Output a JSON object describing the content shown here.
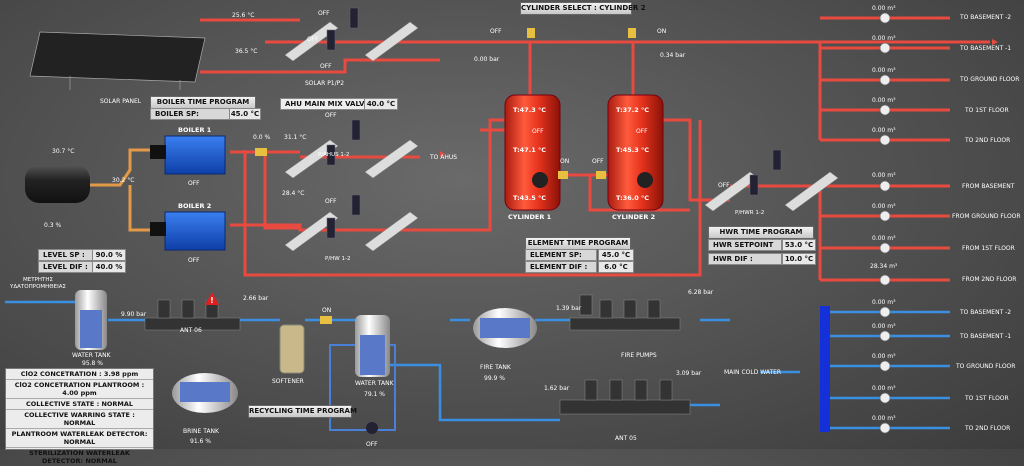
{
  "colors": {
    "hot": "#e8473d",
    "cold": "#3a8fe0",
    "warm": "#e08a3a",
    "recycle": "#2a6fc4"
  },
  "solar": {
    "temp1": "25.6 °C",
    "temp2": "36.5 °C",
    "label": "SOLAR PANEL",
    "pumps_label": "SOLAR P1/P2",
    "pump_state": "OFF",
    "pump_state2": "OFF",
    "pump_state3": "OFF"
  },
  "boiler": {
    "time_program": "BOILER TIME PROGRAM",
    "sp_label": "BOILER SP:",
    "sp_value": "45.0 °C",
    "boiler1": "BOILER 1",
    "boiler1_state": "OFF",
    "boiler2": "BOILER 2",
    "boiler2_state": "OFF",
    "valve_pct": "0.0 %",
    "temp_return": "30.2 °C",
    "temp_out": "28.4 °C"
  },
  "ahu": {
    "mix_label": "AHU MAIN MIX VALVE :",
    "mix_value": "40.0 °C",
    "temp": "31.1 °C",
    "pumps": "P/AHUS 1-2",
    "to_ahus": "TO AHUS",
    "state": "OFF"
  },
  "hw": {
    "pumps": "P/HW 1-2",
    "state": "OFF"
  },
  "tank": {
    "temp": "30.7 °C",
    "pct": "0.3 %",
    "level_sp_label": "LEVEL SP :",
    "level_sp": "90.0 %",
    "level_dif_label": "LEVEL DIF :",
    "level_dif": "40.0 %"
  },
  "cylinder": {
    "select": "CYLINDER SELECT : CYLINDER 2",
    "off_label": "OFF",
    "on_label": "ON",
    "pressure1": "0.00 bar",
    "pressure2": "0.34 bar",
    "cyl1_name": "CYLINDER 1",
    "cyl1_temps": [
      "T:47.3 °C",
      "T:47.1 °C",
      "T:43.5 °C"
    ],
    "cyl2_name": "CYLINDER 2",
    "cyl2_temps": [
      "T:37.2 °C",
      "T:45.3 °C",
      "T:36.0 °C"
    ],
    "state_off": "OFF",
    "valve_on": "ON",
    "valve_off": "OFF"
  },
  "element": {
    "title": "ELEMENT TIME PROGRAM",
    "sp_label": "ELEMENT SP:",
    "sp_value": "45.0 °C",
    "dif_label": "ELEMENT DIF :",
    "dif_value": "6.0 °C"
  },
  "hwr": {
    "title": "HWR TIME PROGRAM",
    "sp_label": "HWR SETPOINT",
    "sp_value": "53.0 °C",
    "dif_label": "HWR DIF :",
    "dif_value": "10.0 °C",
    "pumps": "P/HWR 1-2",
    "state": "OFF"
  },
  "hot_outputs": [
    {
      "flow": "0.00 m³",
      "label": "TO BASEMENT -2"
    },
    {
      "flow": "0.00 m³",
      "label": "TO BASEMENT -1"
    },
    {
      "flow": "0.00 m³",
      "label": "TO GROUND FLOOR"
    },
    {
      "flow": "0.00 m³",
      "label": "TO 1ST FLOOR"
    },
    {
      "flow": "0.00 m³",
      "label": "TO 2ND FLOOR"
    }
  ],
  "returns": [
    {
      "flow": "0.00 m³",
      "label": "FROM BASEMENT"
    },
    {
      "flow": "0.00 m³",
      "label": "FROM GROUND FLOOR"
    },
    {
      "flow": "0.00 m³",
      "label": "FROM 1ST FLOOR"
    },
    {
      "flow": "28.34 m³",
      "label": "FROM 2ND FLOOR"
    }
  ],
  "cold_outputs": [
    {
      "flow": "0.00 m³",
      "label": "TO BASEMENT -2"
    },
    {
      "flow": "0.00 m³",
      "label": "TO BASEMENT -1"
    },
    {
      "flow": "0.00 m³",
      "label": "TO GROUND FLOOR"
    },
    {
      "flow": "0.00 m³",
      "label": "TO 1ST FLOOR"
    },
    {
      "flow": "0.00 m³",
      "label": "TO 2ND FLOOR"
    }
  ],
  "water": {
    "meter_label": "ΜΕΤΡΗΤΗΣ ΥΔΑΤΟΠΡΟΜΗΘΕΙΑΣ",
    "tank1": "WATER TANK",
    "tank1_pct": "95.8 %",
    "pressure_ant": "9.90 bar",
    "ant06": "ANT 06",
    "pressure_soft": "2.66 bar",
    "softener": "SOFTENER",
    "on": "ON",
    "tank2": "WATER TANK",
    "tank2_pct": "79.1 %",
    "brine": "BRINE TANK",
    "brine_pct": "91.6 %",
    "recycle_btn": "RECYCLING TIME PROGRAM",
    "recycle_state": "OFF",
    "fire_tank": "FIRE TANK",
    "fire_pct": "99.9 %",
    "fire_p1": "1.39 bar",
    "fire_p2": "6.28 bar",
    "fire_pumps": "FIRE PUMPS",
    "ant05_p1": "1.62 bar",
    "ant05_p2": "3.09 bar",
    "ant05": "ANT 05",
    "main_cold": "MAIN COLD WATER"
  },
  "status": [
    "ClO2 CONCETRATION : 3.98 ppm",
    "ClO2 CONCETRATION PLANTROOM : 4.00 ppm",
    "COLLECTIVE STATE : NORMAL",
    "COLLECTIVE WARRING STATE : NORMAL",
    "PLANTROOM WATERLEAK DETECTOR: NORMAL",
    "STERILIZATION WATERLEAK DETECTOR: NORMAL"
  ]
}
